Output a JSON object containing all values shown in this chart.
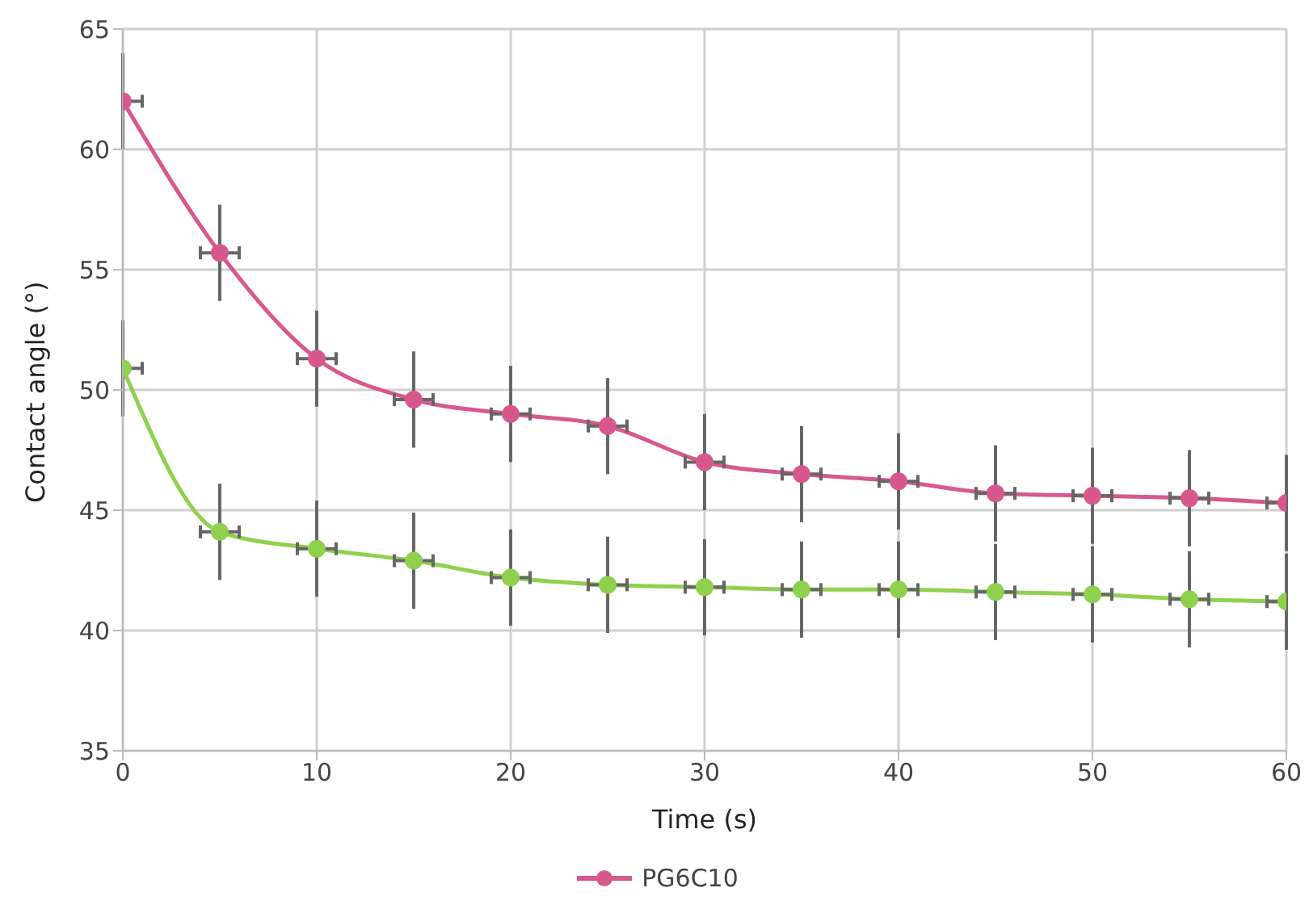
{
  "chart_data": {
    "type": "line",
    "xlabel": "Time (s)",
    "ylabel": "Contact angle (°)",
    "x": [
      0,
      5,
      10,
      15,
      20,
      25,
      30,
      35,
      40,
      45,
      50,
      55,
      60
    ],
    "series": [
      {
        "name": "PG6C10",
        "color": "#d9578f",
        "values": [
          62,
          55.7,
          51.3,
          49.6,
          49.0,
          48.5,
          47.0,
          46.5,
          46.2,
          45.7,
          45.6,
          45.5,
          45.3
        ],
        "errors": [
          2,
          2,
          2,
          2,
          2,
          2,
          2,
          2,
          2,
          2,
          2,
          2,
          2
        ],
        "xerrors": [
          1,
          1,
          1,
          1,
          1,
          1,
          1,
          1,
          1,
          1,
          1,
          1,
          1
        ]
      },
      {
        "color": "#8fd14f",
        "values": [
          50.9,
          44.1,
          43.4,
          42.9,
          42.2,
          41.9,
          41.8,
          41.7,
          41.7,
          41.6,
          41.5,
          41.3,
          41.2
        ],
        "errors": [
          2,
          2,
          2,
          2,
          2,
          2,
          2,
          2,
          2,
          2,
          2,
          2,
          2
        ],
        "xerrors": [
          1,
          1,
          1,
          1,
          1,
          1,
          1,
          1,
          1,
          1,
          1,
          1,
          1
        ]
      }
    ],
    "xlim": [
      0,
      60
    ],
    "xticks": [
      0,
      10,
      20,
      30,
      40,
      50,
      60
    ],
    "ylim": [
      35,
      65
    ],
    "yticks": [
      35,
      40,
      45,
      50,
      55,
      60,
      65
    ],
    "grid": true,
    "legend": "bottom",
    "marker": "circle",
    "line_style": "solid"
  }
}
